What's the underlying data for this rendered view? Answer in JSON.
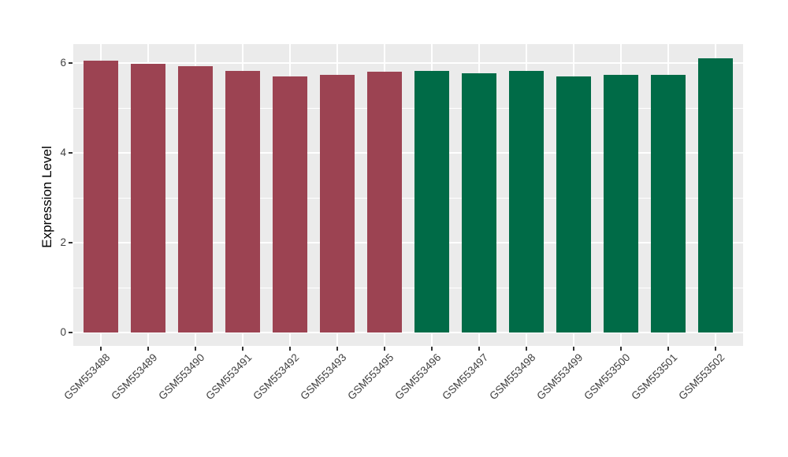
{
  "chart_data": {
    "type": "bar",
    "title": "",
    "xlabel": "",
    "ylabel": "Expression Level",
    "categories": [
      "GSM553488",
      "GSM553489",
      "GSM553490",
      "GSM553491",
      "GSM553492",
      "GSM553493",
      "GSM553495",
      "GSM553496",
      "GSM553497",
      "GSM553498",
      "GSM553499",
      "GSM553500",
      "GSM553501",
      "GSM553502"
    ],
    "values": [
      6.05,
      5.98,
      5.93,
      5.82,
      5.71,
      5.74,
      5.81,
      5.82,
      5.77,
      5.83,
      5.71,
      5.74,
      5.74,
      6.11
    ],
    "bar_colors": [
      "#9C4352",
      "#9C4352",
      "#9C4352",
      "#9C4352",
      "#9C4352",
      "#9C4352",
      "#9C4352",
      "#006B47",
      "#006B47",
      "#006B47",
      "#006B47",
      "#006B47",
      "#006B47",
      "#006B47"
    ],
    "yticks_major": [
      0,
      2,
      4,
      6
    ],
    "yticks_minor": [
      1,
      3,
      5
    ],
    "ytick_labels": [
      "0",
      "2",
      "4",
      "6"
    ],
    "ylim": [
      -0.3,
      6.42
    ],
    "grid": "on",
    "legend": "none",
    "colors": {
      "bar_group_left": "#9C4352",
      "bar_group_right": "#006B47",
      "panel_background": "#EBEBEB",
      "gridline": "#FFFFFF",
      "axis_text": "#404040",
      "tick_mark": "#333333",
      "axis_title_text": "#000000"
    }
  }
}
